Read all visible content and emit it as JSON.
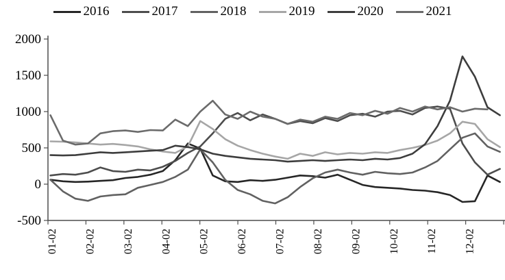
{
  "chart_data": {
    "type": "line",
    "title": "",
    "legend_position": "top",
    "grid": false,
    "ylim": [
      -500,
      2000
    ],
    "y_ticks": [
      2000,
      1500,
      1000,
      500,
      0,
      -500
    ],
    "x_tick_labels": [
      "01-02",
      "02-02",
      "03-02",
      "04-02",
      "05-02",
      "06-02",
      "07-02",
      "08-02",
      "09-02",
      "10-02",
      "11-02",
      "12-02"
    ],
    "x_start_day": 2,
    "x_day_interval": 10,
    "series": [
      {
        "name": "2016",
        "color": "#262626",
        "values": [
          60,
          40,
          30,
          35,
          45,
          55,
          85,
          100,
          130,
          180,
          330,
          560,
          490,
          120,
          40,
          30,
          55,
          45,
          60,
          90,
          120,
          110,
          90,
          130,
          60,
          -10,
          -40,
          -50,
          -60,
          -80,
          -90,
          -110,
          -150,
          -245,
          -235,
          120,
          30
        ]
      },
      {
        "name": "2017",
        "color": "#4d4d4d",
        "values": [
          120,
          140,
          130,
          160,
          230,
          180,
          170,
          200,
          190,
          240,
          320,
          430,
          520,
          700,
          900,
          980,
          880,
          960,
          900,
          830,
          870,
          840,
          910,
          870,
          950,
          970,
          930,
          1000,
          1010,
          960,
          1050,
          1070,
          1040,
          560,
          300,
          130,
          210
        ]
      },
      {
        "name": "2018",
        "color": "#616161",
        "values": [
          60,
          -100,
          -200,
          -230,
          -170,
          -150,
          -140,
          -50,
          -10,
          30,
          100,
          200,
          480,
          300,
          60,
          -80,
          -140,
          -230,
          -265,
          -180,
          -40,
          80,
          160,
          200,
          160,
          130,
          170,
          150,
          140,
          160,
          230,
          320,
          480,
          640,
          700,
          520,
          445
        ]
      },
      {
        "name": "2019",
        "color": "#a6a6a6",
        "values": [
          590,
          585,
          575,
          560,
          545,
          555,
          540,
          520,
          480,
          450,
          430,
          520,
          870,
          760,
          620,
          530,
          470,
          420,
          380,
          350,
          420,
          390,
          440,
          410,
          430,
          420,
          440,
          430,
          470,
          500,
          540,
          600,
          700,
          860,
          830,
          620,
          510
        ]
      },
      {
        "name": "2020",
        "color": "#3d3d3d",
        "values": [
          400,
          395,
          400,
          420,
          440,
          430,
          440,
          450,
          460,
          470,
          530,
          510,
          480,
          420,
          390,
          370,
          350,
          340,
          330,
          310,
          320,
          330,
          320,
          330,
          340,
          330,
          350,
          340,
          360,
          420,
          550,
          800,
          1150,
          1760,
          1480,
          1060,
          950
        ]
      },
      {
        "name": "2021",
        "color": "#6b6b6b",
        "values": [
          950,
          600,
          545,
          560,
          700,
          730,
          740,
          720,
          745,
          740,
          890,
          800,
          1000,
          1150,
          960,
          900,
          1000,
          930,
          900,
          830,
          890,
          860,
          930,
          900,
          980,
          950,
          1010,
          970,
          1050,
          1000,
          1070,
          1030,
          1060,
          1000,
          1040,
          1030,
          null
        ]
      }
    ]
  }
}
